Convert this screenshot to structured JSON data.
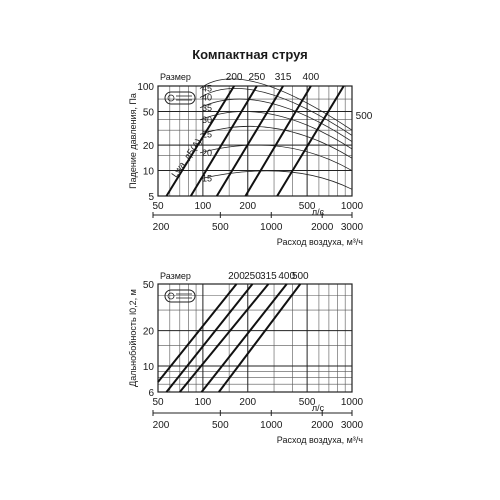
{
  "title": "Компактная струя",
  "chart_data": [
    {
      "type": "line",
      "name": "pressure",
      "yscale": "log",
      "xscale": "log",
      "ylabel": "Падение давления, Па",
      "ylim": [
        5,
        100
      ],
      "yticks": [
        5,
        10,
        20,
        50,
        100
      ],
      "xlim": [
        50,
        1000
      ],
      "xticks_ls": [
        50,
        100,
        200,
        500,
        1000
      ],
      "x_unit_ls": "л/с",
      "xticks_m3h": [
        200,
        500,
        1000,
        2000,
        3000
      ],
      "x_label_m3h": "Расход воздуха, м³/ч",
      "size_label": "Размер",
      "series": [
        {
          "name": "200",
          "points": [
            [
              57,
              5
            ],
            [
              162,
              100
            ]
          ]
        },
        {
          "name": "250",
          "points": [
            [
              83,
              5
            ],
            [
              230,
              100
            ]
          ]
        },
        {
          "name": "315",
          "points": [
            [
              124,
              5
            ],
            [
              345,
              100
            ]
          ]
        },
        {
          "name": "400",
          "points": [
            [
              193,
              5
            ],
            [
              530,
              100
            ]
          ]
        },
        {
          "name": "500",
          "points": [
            [
              315,
              5
            ],
            [
              880,
              100
            ]
          ]
        }
      ],
      "noise_label": "Lwa, дБ(A)",
      "noise_levels": [
        "15",
        "20",
        "25",
        "30",
        "35",
        "40",
        "45"
      ]
    },
    {
      "type": "line",
      "name": "throw",
      "yscale": "log",
      "xscale": "log",
      "ylabel": "Дальнобойность l0,2, м",
      "ylim": [
        6,
        50
      ],
      "yticks": [
        6,
        10,
        20,
        50
      ],
      "xlim": [
        50,
        1000
      ],
      "xticks_ls": [
        50,
        100,
        200,
        500,
        1000
      ],
      "x_unit_ls": "л/с",
      "xticks_m3h": [
        200,
        500,
        1000,
        2000,
        3000
      ],
      "x_label_m3h": "Расход воздуха, м³/ч",
      "size_label": "Размер",
      "series": [
        {
          "name": "200",
          "points": [
            [
              50,
              7.3
            ],
            [
              168,
              50
            ]
          ]
        },
        {
          "name": "250",
          "points": [
            [
              57,
              6
            ],
            [
              215,
              50
            ]
          ]
        },
        {
          "name": "315",
          "points": [
            [
              70,
              6
            ],
            [
              275,
              50
            ]
          ]
        },
        {
          "name": "400",
          "points": [
            [
              98,
              6
            ],
            [
              365,
              50
            ]
          ]
        },
        {
          "name": "500",
          "points": [
            [
              128,
              6
            ],
            [
              450,
              50
            ]
          ]
        }
      ]
    }
  ]
}
